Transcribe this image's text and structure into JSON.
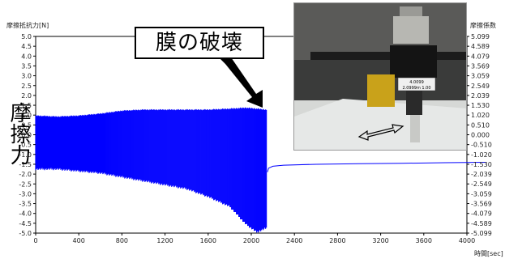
{
  "chart_data": {
    "type": "line",
    "title": "",
    "ylabel_left": "摩擦抵抗力[N]",
    "ylabel_right": "摩擦係数",
    "xlabel": "時間[sec]",
    "xlim": [
      0,
      4000
    ],
    "ylim_left": [
      -5.0,
      5.0
    ],
    "ylim_right": [
      -5.099,
      5.099
    ],
    "xticks": [
      "0",
      "400",
      "800",
      "1200",
      "1600",
      "2000",
      "2400",
      "2800",
      "3200",
      "3600",
      "4000"
    ],
    "yticks_left": [
      "5.0",
      "4.5",
      "4.0",
      "3.5",
      "3.0",
      "2.5",
      "2.0",
      "1.5",
      "1.0",
      "0.5",
      "0.0",
      "-0.5",
      "-1.0",
      "-1.5",
      "-2.0",
      "-2.5",
      "-3.0",
      "-3.5",
      "-4.0",
      "-4.5",
      "-5.0"
    ],
    "yticks_right": [
      "5.099",
      "4.589",
      "4.079",
      "3.569",
      "3.059",
      "2.549",
      "2.039",
      "1.530",
      "1.020",
      "0.510",
      "0.000",
      "-0.510",
      "-1.020",
      "-1.530",
      "-2.039",
      "-2.549",
      "-3.059",
      "-3.569",
      "-4.079",
      "-4.589",
      "-5.099"
    ],
    "grid": false,
    "line_color": "#0000ff",
    "series": [
      {
        "style": "oscillating band",
        "time": [
          0,
          200,
          400,
          600,
          800,
          1000,
          1200,
          1400,
          1600,
          1800,
          1950,
          2050,
          2140
        ],
        "upper": [
          1.0,
          0.95,
          1.0,
          1.1,
          1.25,
          1.3,
          1.3,
          1.3,
          1.3,
          1.35,
          1.4,
          1.35,
          1.3
        ],
        "lower": [
          -1.8,
          -1.8,
          -1.9,
          -2.0,
          -2.2,
          -2.4,
          -2.6,
          -2.8,
          -3.2,
          -3.7,
          -4.6,
          -5.0,
          -4.8
        ]
      },
      {
        "style": "line",
        "x": [
          2150,
          2160,
          2200,
          2300,
          2600,
          3000,
          3400,
          3800,
          4180
        ],
        "y": [
          -1.9,
          -1.7,
          -1.6,
          -1.55,
          -1.5,
          -1.47,
          -1.45,
          -1.42,
          -1.4
        ]
      }
    ]
  },
  "annotations": {
    "callout": "膜の破壊",
    "side_label": "摩擦力"
  },
  "photo": {
    "label_line1": "4.0099",
    "label_line2": "2.0999m 1.00"
  },
  "colors": {
    "series": "#0000ff",
    "arrow": "#000000"
  }
}
